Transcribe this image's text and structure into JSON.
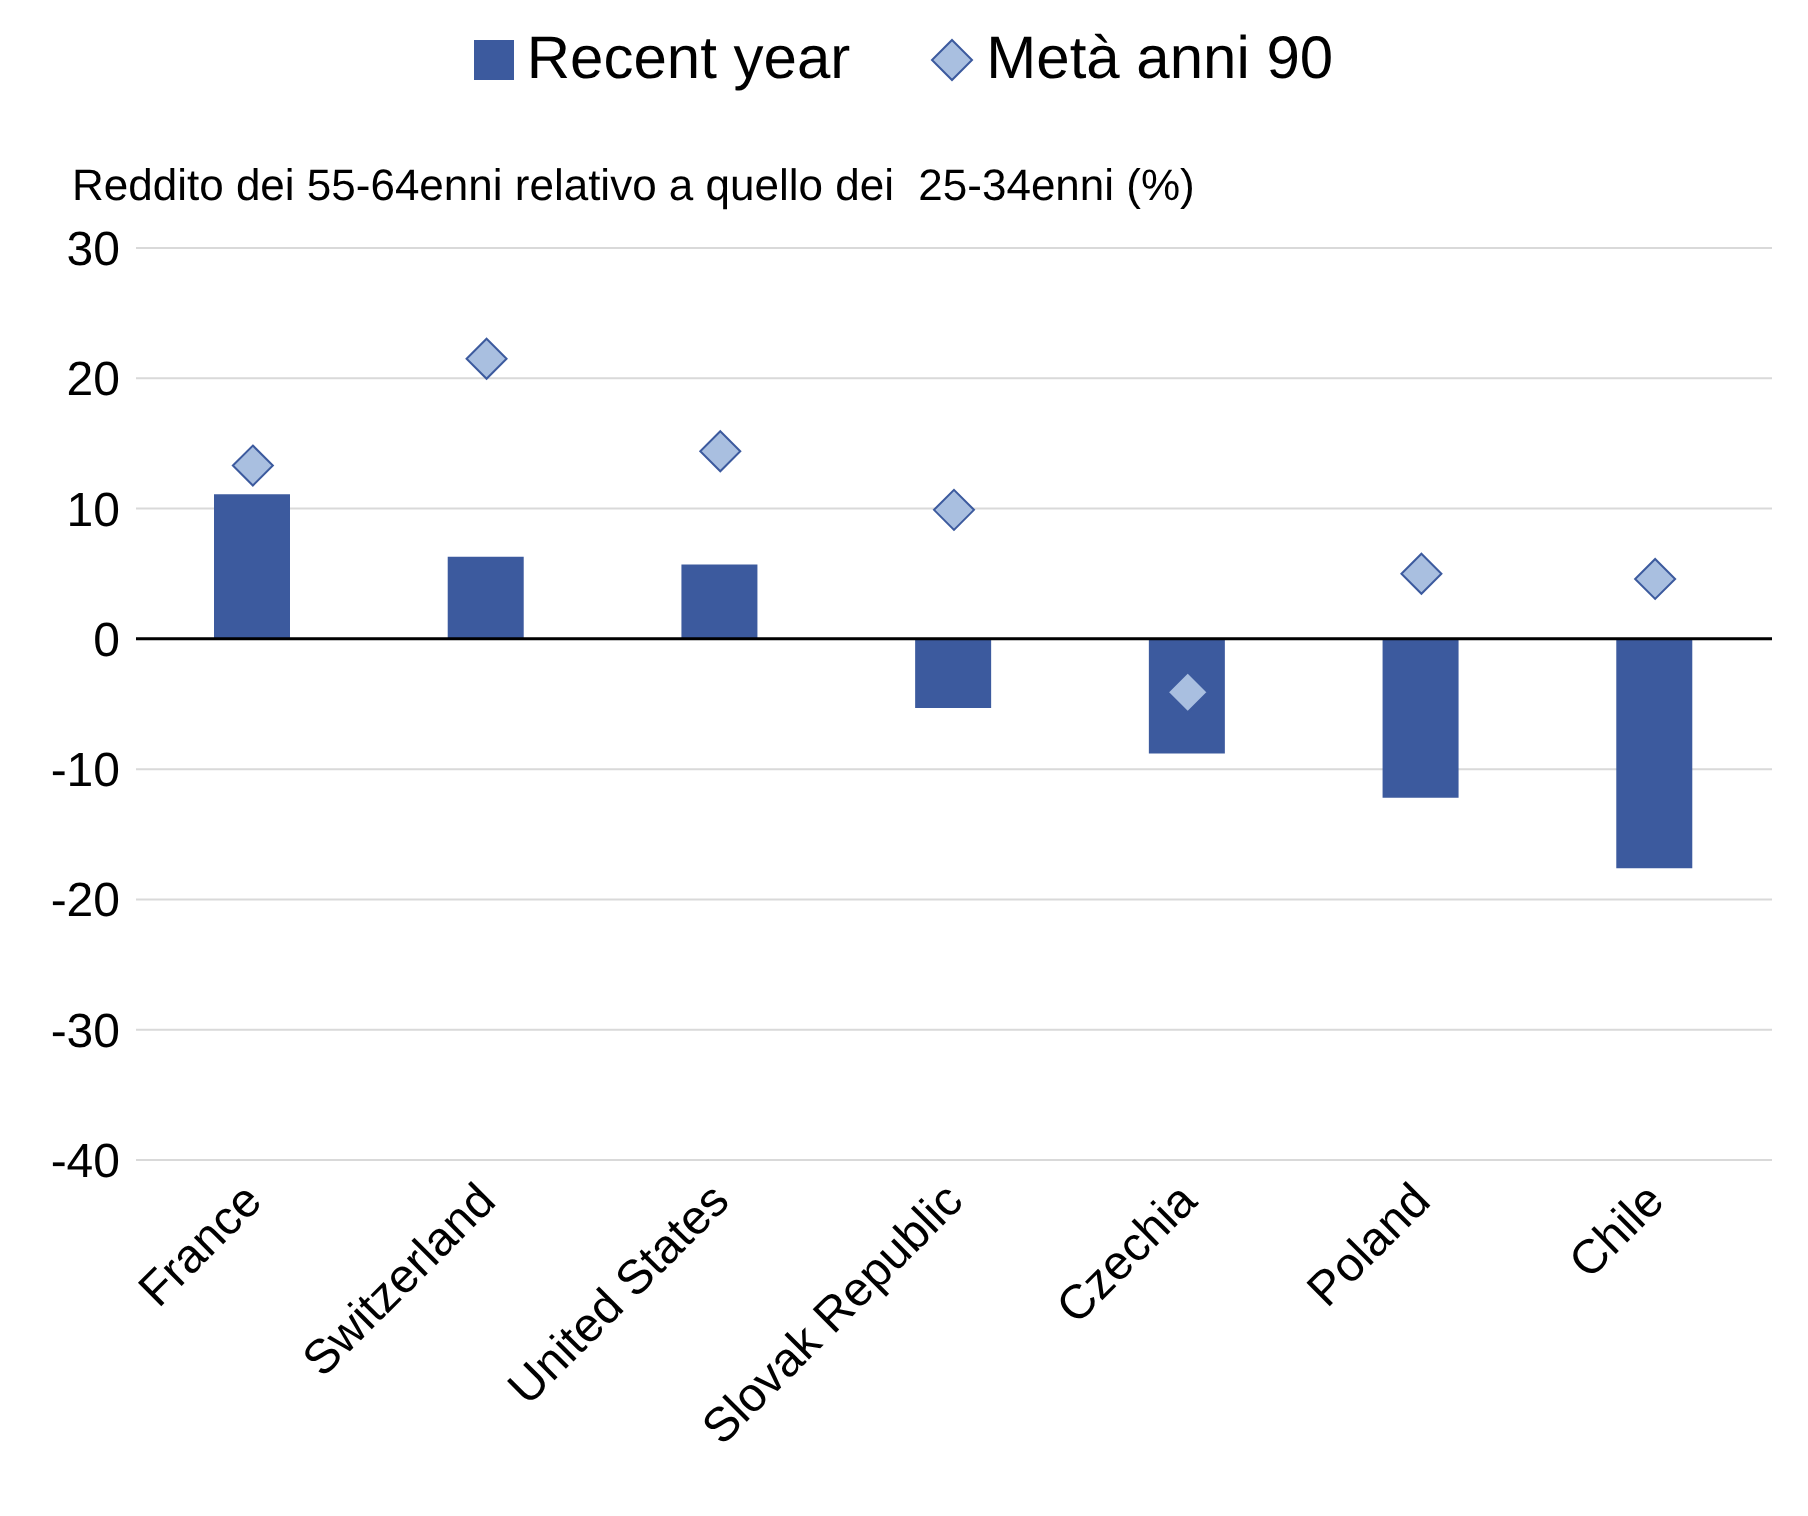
{
  "chart_data": {
    "type": "bar",
    "ylabel": "Reddito dei 55-64enni relativo a quello dei  25-34enni (%)",
    "categories": [
      "France",
      "Switzerland",
      "United States",
      "Slovak Republic",
      "Czechia",
      "Poland",
      "Chile"
    ],
    "series": [
      {
        "name": "Recent year",
        "color": "#3c5a9e",
        "values": [
          11.1,
          6.3,
          5.7,
          -5.3,
          -8.8,
          -12.2,
          -17.6
        ]
      },
      {
        "name": "Metà anni 90",
        "type": "scatter",
        "color": "#a9bfe0",
        "values": [
          13.3,
          21.5,
          14.4,
          9.9,
          -4.1,
          5.0,
          4.6
        ]
      }
    ],
    "ylim": [
      -40,
      30
    ],
    "yticks": [
      -40,
      -30,
      -20,
      -10,
      0,
      10,
      20,
      30
    ],
    "grid": "y",
    "legend": "top",
    "marker": "diamond",
    "ref_lines": [
      {
        "axis": "y",
        "value": 0,
        "color": "#000000"
      }
    ]
  }
}
